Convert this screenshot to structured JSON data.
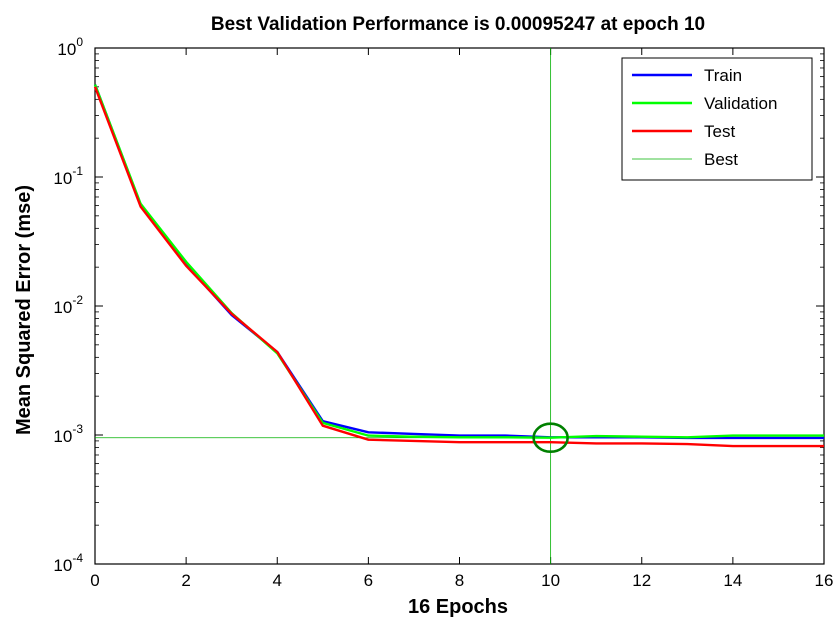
{
  "chart_data": {
    "type": "line",
    "title": "Best Validation Performance is 0.00095247 at epoch 10",
    "xlabel": "16 Epochs",
    "ylabel": "Mean Squared Error  (mse)",
    "xlim": [
      0,
      16
    ],
    "ylim": [
      0.0001,
      1
    ],
    "yscale": "log",
    "grid": false,
    "legend_position": "top-right",
    "x_ticks": [
      0,
      2,
      4,
      6,
      8,
      10,
      12,
      14,
      16
    ],
    "x_tick_labels": [
      "0",
      "2",
      "4",
      "6",
      "8",
      "10",
      "12",
      "14",
      "16"
    ],
    "y_ticks": [
      {
        "value": 1,
        "base": "10",
        "exp": "0"
      },
      {
        "value": 0.1,
        "base": "10",
        "exp": "-1"
      },
      {
        "value": 0.01,
        "base": "10",
        "exp": "-2"
      },
      {
        "value": 0.001,
        "base": "10",
        "exp": "-3"
      },
      {
        "value": 0.0001,
        "base": "10",
        "exp": "-4"
      }
    ],
    "x": [
      0,
      1,
      2,
      3,
      4,
      5,
      6,
      7,
      8,
      9,
      10,
      11,
      12,
      13,
      14,
      15,
      16
    ],
    "series": [
      {
        "name": "Train",
        "color": "#0000ff",
        "values": [
          0.52,
          0.061,
          0.021,
          0.0085,
          0.0044,
          0.00128,
          0.00105,
          0.00102,
          0.00099,
          0.00099,
          0.00096,
          0.00096,
          0.00096,
          0.00095,
          0.00095,
          0.00095,
          0.00095
        ]
      },
      {
        "name": "Validation",
        "color": "#00ff00",
        "values": [
          0.52,
          0.062,
          0.022,
          0.0088,
          0.0043,
          0.00124,
          0.00099,
          0.00097,
          0.00096,
          0.00096,
          0.00095247,
          0.00098,
          0.00097,
          0.00096,
          0.00099,
          0.00099,
          0.00099
        ]
      },
      {
        "name": "Test",
        "color": "#ff0000",
        "values": [
          0.5,
          0.059,
          0.0205,
          0.0087,
          0.0044,
          0.00118,
          0.00092,
          0.0009,
          0.00088,
          0.00088,
          0.00088,
          0.00086,
          0.00086,
          0.00085,
          0.00082,
          0.00082,
          0.00082
        ]
      }
    ],
    "best": {
      "name": "Best",
      "color": "#00b000",
      "epoch": 10,
      "value": 0.00095247,
      "marker_color": "#008000"
    }
  }
}
